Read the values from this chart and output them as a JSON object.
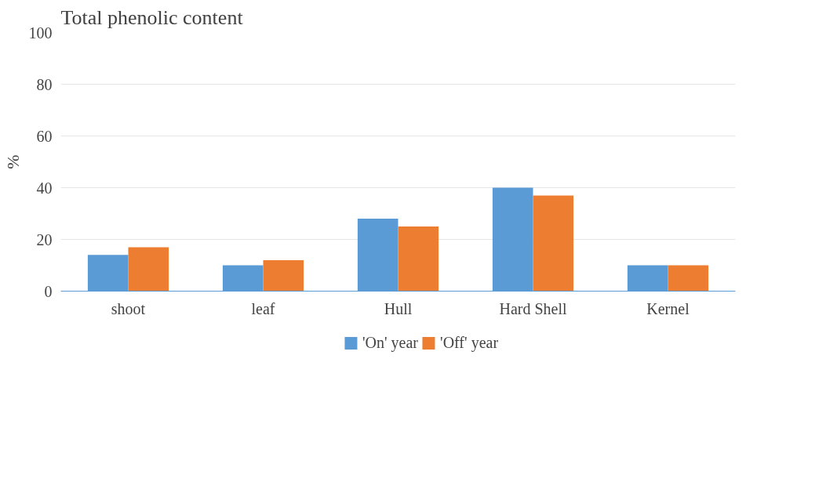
{
  "chart_data": {
    "type": "bar",
    "title": "Total phenolic content",
    "ylabel": "%",
    "categories": [
      "shoot",
      "leaf",
      "Hull",
      "Hard Shell",
      "Kernel"
    ],
    "series": [
      {
        "name": "'On' year",
        "color": "#5b9bd5",
        "values": [
          14,
          10,
          28,
          40,
          10
        ]
      },
      {
        "name": "'Off' year",
        "color": "#ed7d31",
        "values": [
          17,
          12,
          25,
          37,
          10
        ]
      }
    ],
    "ylim": [
      0,
      100
    ],
    "yticks": [
      0,
      20,
      40,
      60,
      80,
      100
    ],
    "grid": "y",
    "legend": "bottom"
  }
}
